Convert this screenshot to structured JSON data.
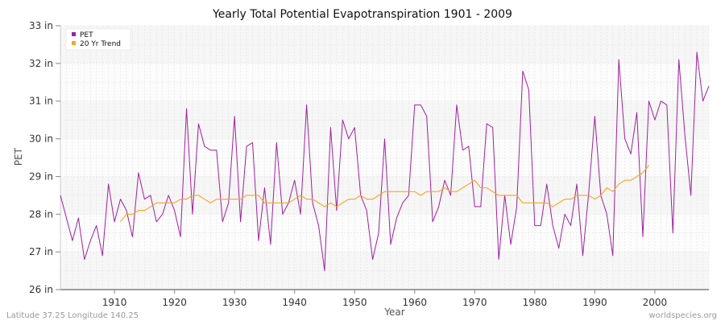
{
  "chart_data": {
    "type": "line",
    "title": "Yearly Total Potential Evapotranspiration 1901 - 2009",
    "xlabel": "Year",
    "ylabel": "PET",
    "xlim": [
      1901,
      2009
    ],
    "ylim": [
      26,
      33
    ],
    "x_ticks": [
      1910,
      1920,
      1930,
      1940,
      1950,
      1960,
      1970,
      1980,
      1990,
      2000
    ],
    "y_ticks": [
      26,
      27,
      28,
      29,
      30,
      31,
      32,
      33
    ],
    "y_tick_labels": [
      "26 in",
      "27 in",
      "28 in",
      "29 in",
      "30 in",
      "31 in",
      "32 in",
      "33 in"
    ],
    "grid": true,
    "legend_position": "top-left",
    "series": [
      {
        "name": "PET",
        "color": "#a020a0",
        "x_start": 1901,
        "values": [
          28.5,
          27.9,
          27.3,
          27.9,
          26.8,
          27.3,
          27.7,
          26.9,
          28.8,
          27.8,
          28.4,
          28.1,
          27.4,
          29.1,
          28.4,
          28.5,
          27.8,
          28.0,
          28.5,
          28.1,
          27.4,
          30.8,
          28.0,
          30.4,
          29.8,
          29.7,
          29.7,
          27.8,
          28.3,
          30.6,
          27.8,
          29.8,
          29.9,
          27.3,
          28.7,
          27.2,
          29.9,
          28.0,
          28.3,
          28.9,
          28.0,
          30.9,
          28.3,
          27.7,
          26.5,
          30.3,
          28.1,
          30.5,
          30.0,
          30.3,
          28.5,
          28.1,
          26.8,
          27.5,
          30.0,
          27.2,
          27.9,
          28.3,
          28.5,
          30.9,
          30.9,
          30.6,
          27.8,
          28.2,
          28.9,
          28.5,
          30.9,
          29.7,
          29.8,
          28.2,
          28.2,
          30.4,
          30.3,
          26.8,
          28.5,
          27.2,
          28.2,
          31.8,
          31.3,
          27.7,
          27.7,
          28.8,
          27.7,
          27.1,
          28.0,
          27.7,
          28.8,
          26.9,
          28.6,
          30.6,
          28.5,
          28.0,
          26.9,
          32.1,
          30.0,
          29.6,
          30.7,
          27.4,
          31.0,
          30.5,
          31.0,
          30.9,
          27.5,
          32.1,
          30.1,
          28.5,
          32.3,
          31.0,
          31.4
        ]
      },
      {
        "name": "20 Yr Trend",
        "color": "#f5a623",
        "x_start": 1911,
        "values": [
          27.8,
          28.0,
          28.0,
          28.1,
          28.1,
          28.2,
          28.3,
          28.3,
          28.3,
          28.3,
          28.4,
          28.4,
          28.5,
          28.5,
          28.4,
          28.3,
          28.4,
          28.4,
          28.4,
          28.4,
          28.4,
          28.5,
          28.5,
          28.5,
          28.3,
          28.3,
          28.3,
          28.3,
          28.3,
          28.4,
          28.5,
          28.4,
          28.4,
          28.3,
          28.2,
          28.3,
          28.2,
          28.3,
          28.4,
          28.4,
          28.5,
          28.4,
          28.4,
          28.5,
          28.6,
          28.6,
          28.6,
          28.6,
          28.6,
          28.6,
          28.5,
          28.6,
          28.6,
          28.6,
          28.7,
          28.6,
          28.6,
          28.7,
          28.8,
          28.9,
          28.7,
          28.7,
          28.6,
          28.5,
          28.5,
          28.5,
          28.5,
          28.3,
          28.3,
          28.3,
          28.3,
          28.3,
          28.2,
          28.3,
          28.4,
          28.4,
          28.5,
          28.5,
          28.5,
          28.4,
          28.5,
          28.7,
          28.6,
          28.8,
          28.9,
          28.9,
          29.0,
          29.1,
          29.3
        ]
      }
    ]
  },
  "footer": {
    "location": "Latitude 37.25 Longitude 140.25",
    "source": "worldspecies.org"
  }
}
